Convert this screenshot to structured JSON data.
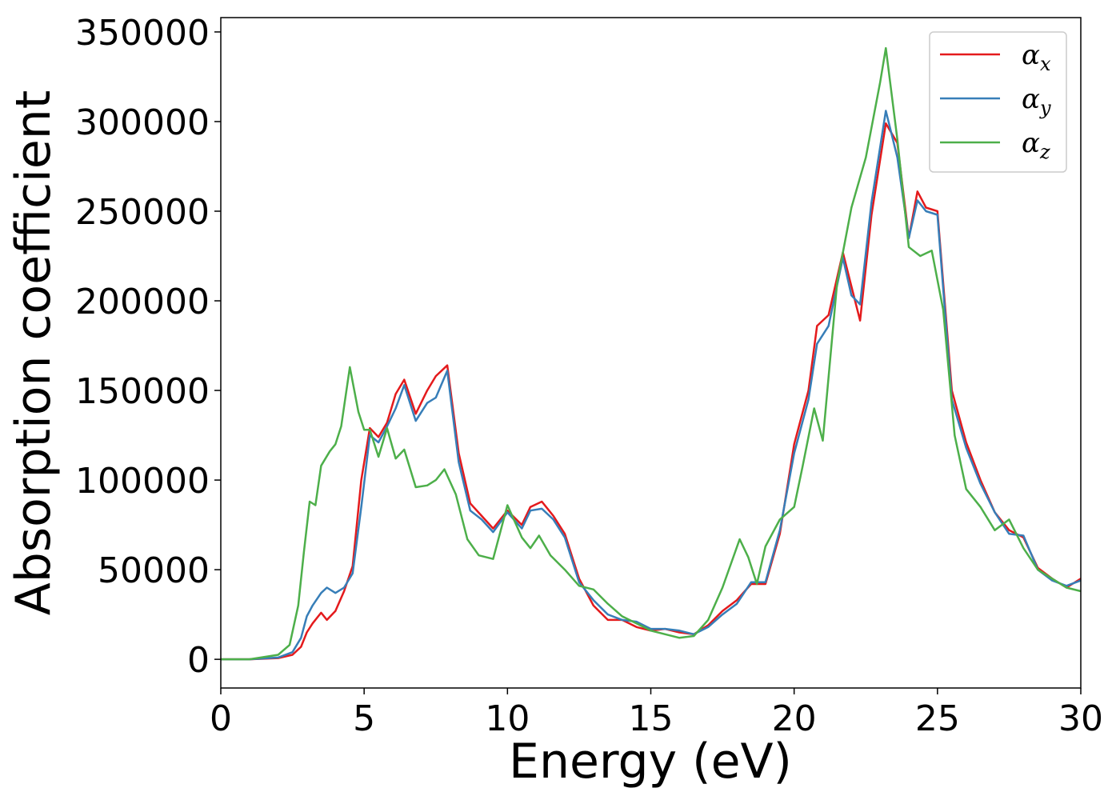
{
  "chart_data": {
    "type": "line",
    "xlabel": "Energy (eV)",
    "ylabel": "Absorption coefficient",
    "xlim": [
      0,
      30
    ],
    "ylim": [
      -16000,
      358000
    ],
    "xticks": [
      0,
      5,
      10,
      15,
      20,
      25,
      30
    ],
    "xtick_labels": [
      "0",
      "5",
      "10",
      "15",
      "20",
      "25",
      "30"
    ],
    "yticks": [
      0,
      50000,
      100000,
      150000,
      200000,
      250000,
      300000,
      350000
    ],
    "ytick_labels": [
      "0",
      "50000",
      "100000",
      "150000",
      "200000",
      "250000",
      "300000",
      "350000"
    ],
    "grid": false,
    "legend_position": "top-right",
    "series": [
      {
        "name": "α_x",
        "label_main": "α",
        "label_sub": "x",
        "color": "#e41a1c",
        "x": [
          0,
          1,
          2,
          2.5,
          2.8,
          3.0,
          3.2,
          3.5,
          3.7,
          4.0,
          4.3,
          4.6,
          4.9,
          5.2,
          5.5,
          5.8,
          6.1,
          6.4,
          6.8,
          7.2,
          7.5,
          7.9,
          8.3,
          8.7,
          9.1,
          9.5,
          10.0,
          10.5,
          10.8,
          11.2,
          11.6,
          12.0,
          12.5,
          13.0,
          13.5,
          14.0,
          14.5,
          15.0,
          15.5,
          16.0,
          16.5,
          17.0,
          17.5,
          18.0,
          18.5,
          19.0,
          19.5,
          20.0,
          20.5,
          20.8,
          21.2,
          21.7,
          22.0,
          22.3,
          22.7,
          23.2,
          23.6,
          24.0,
          24.3,
          24.6,
          25.0,
          25.5,
          26.0,
          26.5,
          27.0,
          27.5,
          28.0,
          28.5,
          29.0,
          29.5,
          30.0
        ],
        "values": [
          0,
          0,
          700,
          2500,
          7000,
          15000,
          20000,
          26000,
          22000,
          27000,
          38000,
          52000,
          100000,
          129000,
          124000,
          132000,
          148000,
          156000,
          137000,
          150000,
          158000,
          164000,
          115000,
          87000,
          80000,
          73000,
          83000,
          75000,
          85000,
          88000,
          80000,
          70000,
          45000,
          30000,
          22000,
          22000,
          18000,
          16000,
          17000,
          15000,
          14000,
          19000,
          27000,
          33000,
          42000,
          42000,
          70000,
          120000,
          150000,
          186000,
          192000,
          227000,
          208000,
          189000,
          248000,
          299000,
          288000,
          235000,
          261000,
          252000,
          250000,
          150000,
          121000,
          100000,
          82000,
          72000,
          68000,
          51000,
          45000,
          40000,
          45000
        ]
      },
      {
        "name": "α_y",
        "label_main": "α",
        "label_sub": "y",
        "color": "#377eb8",
        "x": [
          0,
          1,
          2,
          2.5,
          2.8,
          3.0,
          3.2,
          3.5,
          3.7,
          4.0,
          4.3,
          4.6,
          4.9,
          5.2,
          5.5,
          5.8,
          6.1,
          6.4,
          6.8,
          7.2,
          7.5,
          7.9,
          8.3,
          8.7,
          9.1,
          9.5,
          10.0,
          10.5,
          10.8,
          11.2,
          11.6,
          12.0,
          12.5,
          13.0,
          13.5,
          14.0,
          14.5,
          15.0,
          15.5,
          16.0,
          16.5,
          17.0,
          17.5,
          18.0,
          18.5,
          19.0,
          19.5,
          20.0,
          20.5,
          20.8,
          21.2,
          21.7,
          22.0,
          22.3,
          22.7,
          23.2,
          23.6,
          24.0,
          24.3,
          24.6,
          25.0,
          25.5,
          26.0,
          26.5,
          27.0,
          27.5,
          28.0,
          28.5,
          29.0,
          29.5,
          30.0
        ],
        "values": [
          0,
          0,
          1000,
          4000,
          12000,
          24000,
          30000,
          37000,
          40000,
          37000,
          40000,
          48000,
          85000,
          125000,
          121000,
          130000,
          140000,
          153000,
          133000,
          143000,
          146000,
          161000,
          110000,
          83000,
          78000,
          71000,
          82000,
          73000,
          83000,
          84000,
          78000,
          68000,
          43000,
          33000,
          25000,
          22000,
          21000,
          17000,
          17000,
          16000,
          14000,
          18000,
          25000,
          31000,
          43000,
          43000,
          72000,
          115000,
          145000,
          176000,
          186000,
          224000,
          203000,
          198000,
          255000,
          306000,
          280000,
          235000,
          256000,
          250000,
          248000,
          145000,
          118000,
          98000,
          82000,
          70000,
          69000,
          50000,
          44000,
          41000,
          44000
        ]
      },
      {
        "name": "α_z",
        "label_main": "α",
        "label_sub": "z",
        "color": "#4daf4a",
        "x": [
          0,
          1,
          2,
          2.4,
          2.7,
          2.9,
          3.1,
          3.3,
          3.5,
          3.8,
          4.0,
          4.2,
          4.5,
          4.8,
          5.0,
          5.2,
          5.5,
          5.8,
          6.1,
          6.4,
          6.8,
          7.2,
          7.5,
          7.8,
          8.2,
          8.6,
          9.0,
          9.5,
          10.0,
          10.5,
          10.8,
          11.1,
          11.5,
          12.0,
          12.5,
          13.0,
          13.5,
          14.0,
          14.5,
          15.0,
          15.5,
          16.0,
          16.5,
          17.0,
          17.5,
          18.1,
          18.4,
          18.7,
          19.0,
          19.5,
          20.0,
          20.3,
          20.7,
          21.0,
          21.5,
          22.0,
          22.5,
          23.0,
          23.2,
          23.6,
          24.0,
          24.4,
          24.8,
          25.2,
          25.6,
          26.0,
          26.5,
          27.0,
          27.5,
          28.0,
          28.5,
          29.0,
          29.5,
          30.0
        ],
        "values": [
          0,
          0,
          2500,
          8000,
          30000,
          60000,
          88000,
          86000,
          108000,
          116000,
          120000,
          130000,
          163000,
          138000,
          128000,
          128000,
          113000,
          129000,
          112000,
          117000,
          96000,
          97000,
          100000,
          106000,
          92000,
          67000,
          58000,
          56000,
          86000,
          68000,
          62000,
          69000,
          58000,
          50000,
          41000,
          39000,
          31000,
          24000,
          20000,
          16000,
          14000,
          12000,
          13000,
          22000,
          40000,
          67000,
          57000,
          42000,
          63000,
          78000,
          85000,
          108000,
          140000,
          122000,
          210000,
          252000,
          280000,
          322000,
          341000,
          290000,
          230000,
          225000,
          228000,
          195000,
          125000,
          95000,
          85000,
          72000,
          78000,
          62000,
          50000,
          45000,
          40000,
          38000
        ]
      }
    ]
  }
}
